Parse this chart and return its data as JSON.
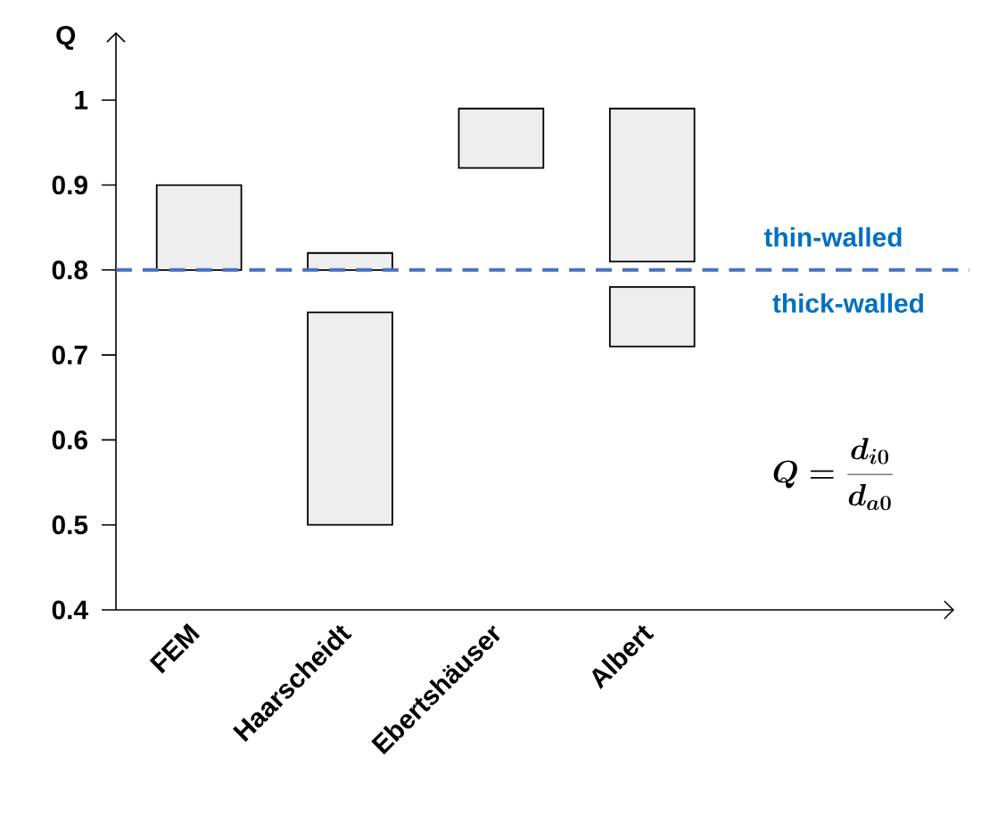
{
  "chart_data": {
    "type": "bar",
    "ylabel": "Q",
    "categories": [
      "FEM",
      "Haarscheidt",
      "Ebertshäuser",
      "Albert"
    ],
    "series": [
      {
        "color": "#eeeeee",
        "base": [
          0.8,
          0.8,
          0.92,
          0.81
        ],
        "values": [
          0.1,
          0.02,
          0.07,
          0.18
        ]
      },
      {
        "color": "#eeeeee",
        "base": [
          null,
          0.5,
          null,
          0.71
        ],
        "values": [
          null,
          0.25,
          null,
          0.07
        ]
      }
    ],
    "ylim": [
      0.4,
      1.08
    ],
    "yticks": [
      0.4,
      0.5,
      0.6,
      0.7,
      0.8,
      0.9,
      1
    ],
    "ref_lines": [
      {
        "axis": "y",
        "value": 0.8,
        "color": "#4472c4",
        "line_style": "dashed"
      }
    ],
    "annotations": [
      "thin-walled",
      "thick-walled",
      "Q = \\frac{d_{i0}}{d_{a0}}"
    ],
    "grid": false
  }
}
